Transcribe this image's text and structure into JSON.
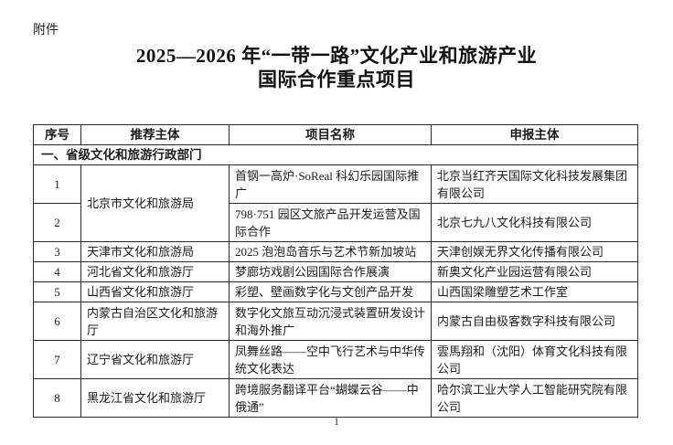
{
  "page": {
    "attachment_label": "附件",
    "title_line1": "2025—2026 年“一带一路”文化产业和旅游产业",
    "title_line2": "国际合作重点项目",
    "page_number": "1"
  },
  "table": {
    "headers": {
      "serial": "序号",
      "recommender": "推荐主体",
      "project": "项目名称",
      "declarer": "申报主体"
    },
    "section_title": "一、省级文化和旅游行政部门",
    "rows": [
      {
        "serial": "1",
        "recommender": "北京市文化和旅游局",
        "project": "首钢一高炉·SoReal 科幻乐园国际推广",
        "declarer": "北京当红齐天国际文化科技发展集团有限公司"
      },
      {
        "serial": "2",
        "recommender": "",
        "project": "798·751 园区文旅产品开发运营及国际合作",
        "declarer": "北京七九八文化科技有限公司"
      },
      {
        "serial": "3",
        "recommender": "天津市文化和旅游局",
        "project": "2025 泡泡岛音乐与艺术节新加坡站",
        "declarer": "天津创娱无界文化传播有限公司"
      },
      {
        "serial": "4",
        "recommender": "河北省文化和旅游厅",
        "project": "梦廊坊戏剧公园国际合作展演",
        "declarer": "新奥文化产业园运营有限公司"
      },
      {
        "serial": "5",
        "recommender": "山西省文化和旅游厅",
        "project": "彩塑、壁画数字化与文创产品开发",
        "declarer": "山西国梁雕塑艺术工作室"
      },
      {
        "serial": "6",
        "recommender": "内蒙古自治区文化和旅游厅",
        "project": "数字化文旅互动沉浸式装置研发设计和海外推广",
        "declarer": "内蒙古自由极客数字科技有限公司"
      },
      {
        "serial": "7",
        "recommender": "辽宁省文化和旅游厅",
        "project": "凤舞丝路——空中飞行艺术与中华传统文化表达",
        "declarer": "雲馬翔和（沈阳）体育文化科技有限公司"
      },
      {
        "serial": "8",
        "recommender": "黑龙江省文化和旅游厅",
        "project": "跨境服务翻译平台“蝴蝶云谷——中俄通”",
        "declarer": "哈尔滨工业大学人工智能研究院有限公司"
      }
    ]
  }
}
